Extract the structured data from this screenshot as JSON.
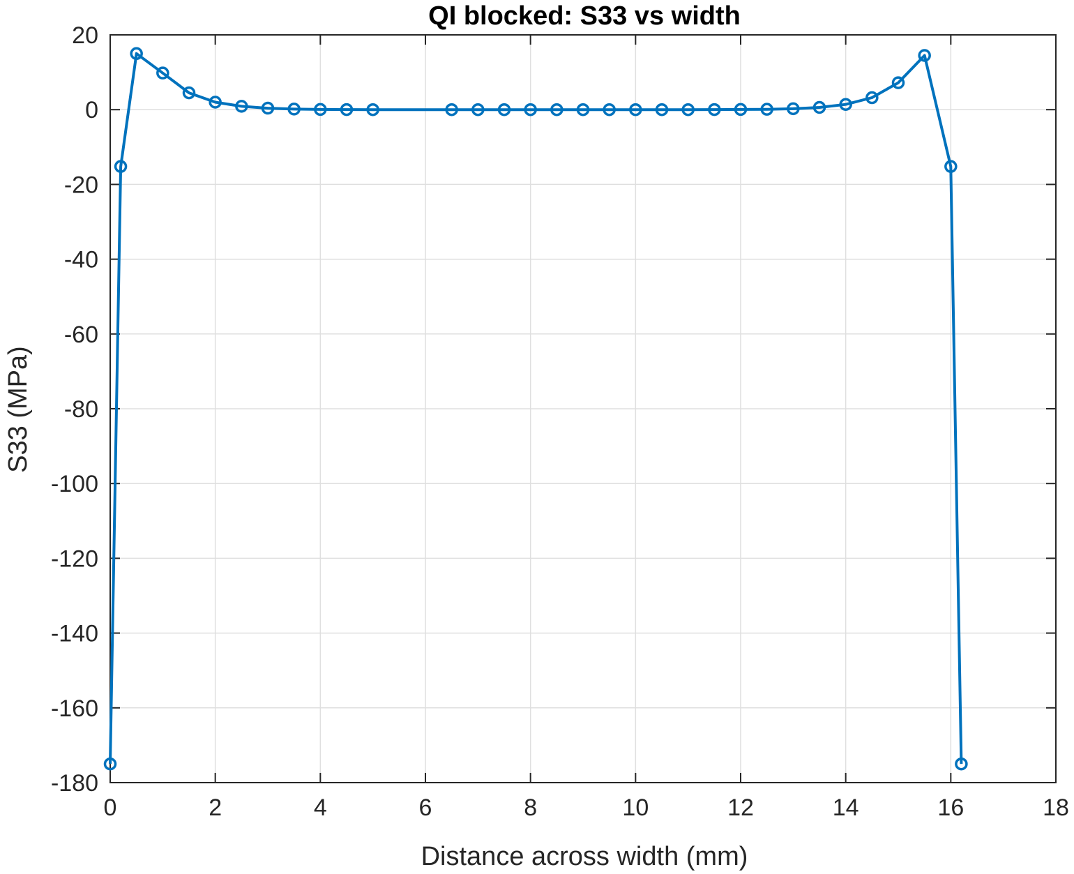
{
  "chart_data": {
    "type": "line",
    "title": "QI blocked: S33 vs width",
    "xlabel": "Distance across width (mm)",
    "ylabel": "S33 (MPa)",
    "xlim": [
      0,
      18
    ],
    "ylim": [
      -180,
      20
    ],
    "xticks": [
      0,
      2,
      4,
      6,
      8,
      10,
      12,
      14,
      16,
      18
    ],
    "yticks": [
      20,
      0,
      -20,
      -40,
      -60,
      -80,
      -100,
      -120,
      -140,
      -160,
      -180
    ],
    "grid": true,
    "line_color": "#0072BD",
    "marker": "circle",
    "series": [
      {
        "x": [
          0.0,
          0.2,
          0.5,
          1.0,
          1.5,
          2.0,
          2.5,
          3.0,
          3.5,
          4.0,
          4.5,
          5.0,
          6.5,
          7.0,
          7.5,
          8.0,
          8.5,
          9.0,
          9.5,
          10.0,
          10.5,
          11.0,
          11.5,
          12.0,
          12.5,
          13.0,
          13.5,
          14.0,
          14.5,
          15.0,
          15.5,
          16.0,
          16.2
        ],
        "y": [
          -175,
          -15.2,
          15,
          9.8,
          4.5,
          2.0,
          0.9,
          0.4,
          0.15,
          0.05,
          0.02,
          0.0,
          0.0,
          0.0,
          0.0,
          0.0,
          0.0,
          0.0,
          0.0,
          0.0,
          0.0,
          0.0,
          0.02,
          0.05,
          0.1,
          0.25,
          0.6,
          1.4,
          3.2,
          7.2,
          14.5,
          -15.2,
          -175
        ]
      }
    ]
  }
}
